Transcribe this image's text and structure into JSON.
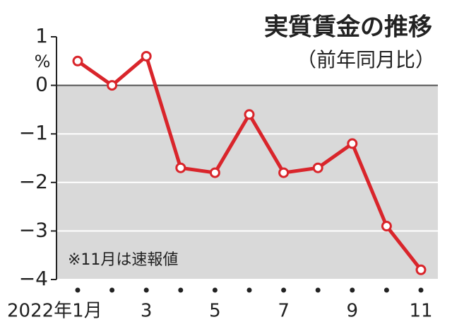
{
  "chart_data": {
    "type": "line",
    "title": "実質賃金の推移",
    "subtitle": "（前年同月比）",
    "y_label": "%",
    "annotation": "※11月は速報値",
    "categories": [
      "2022年1月",
      null,
      "3",
      null,
      "5",
      null,
      "7",
      null,
      "9",
      null,
      "11"
    ],
    "series": [
      {
        "name": "実質賃金",
        "color": "#d9252b",
        "values": [
          0.5,
          0.0,
          0.6,
          -1.7,
          -1.8,
          -0.6,
          -1.8,
          -1.7,
          -1.2,
          -2.9,
          -3.8
        ]
      }
    ],
    "ylim": [
      -4,
      1
    ],
    "yticks": [
      1,
      0,
      {
        "value": -1,
        "label": "−1"
      },
      {
        "value": -2,
        "label": "−2"
      },
      {
        "value": -3,
        "label": "−3"
      },
      {
        "value": -4,
        "label": "−4"
      }
    ],
    "grid": true
  }
}
